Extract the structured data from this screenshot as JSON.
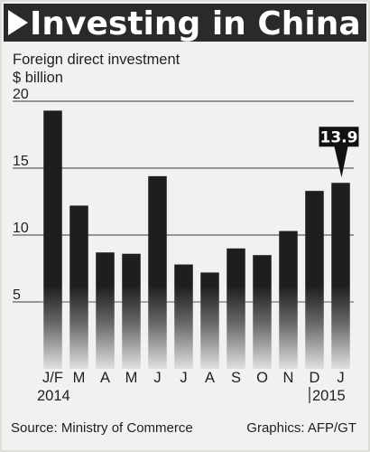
{
  "chart_data": {
    "type": "bar",
    "title": "Investing in China",
    "subtitle_lines": [
      "Foreign direct investment",
      "$ billion"
    ],
    "categories": [
      "J/F",
      "M",
      "A",
      "M",
      "J",
      "J",
      "A",
      "S",
      "O",
      "N",
      "D",
      "J"
    ],
    "year_labels": [
      "2014",
      "2015"
    ],
    "values": [
      19.3,
      12.2,
      8.7,
      8.6,
      14.4,
      7.8,
      7.2,
      9.0,
      8.5,
      10.3,
      13.3,
      13.9
    ],
    "ylim": [
      0,
      20
    ],
    "yticks": [
      5,
      10,
      15,
      20
    ],
    "grid": true,
    "highlight_label": "13.9",
    "source": "Source: Ministry of Commerce",
    "credit": "Graphics: AFP/GT",
    "colors": {
      "bar": "#1e1e1e",
      "background": "#f1f1ef",
      "title_band": "#2a2a2a",
      "callout": "#111111"
    }
  }
}
